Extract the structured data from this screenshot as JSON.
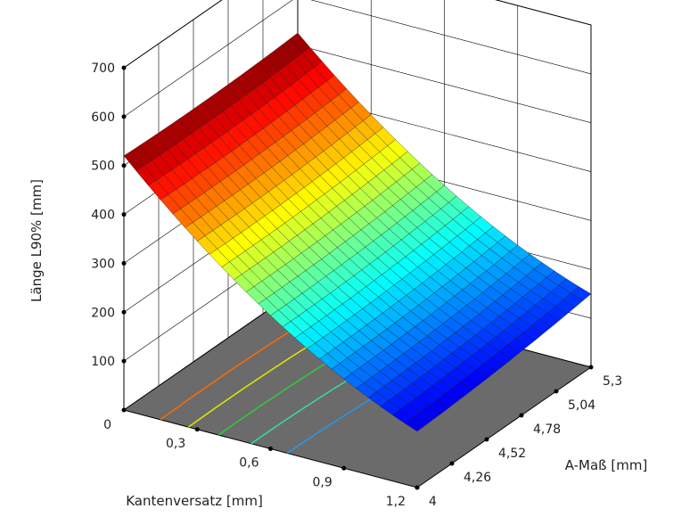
{
  "chart_data": {
    "type": "surface",
    "title": "",
    "zlabel": "Länge L90% [mm]",
    "xlabel": "Kantenversatz [mm]",
    "ylabel": "A-Maß [mm]",
    "x_ticks": [
      "0",
      "0,3",
      "0,6",
      "0,9",
      "1,2"
    ],
    "x_tick_values": [
      0,
      0.3,
      0.6,
      0.9,
      1.2
    ],
    "y_ticks": [
      "4",
      "4,26",
      "4,52",
      "4,78",
      "5,04",
      "5,3"
    ],
    "y_tick_values": [
      4,
      4.26,
      4.52,
      4.78,
      5.04,
      5.3
    ],
    "z_ticks": [
      "100",
      "200",
      "300",
      "400",
      "500",
      "600",
      "700"
    ],
    "z_tick_values": [
      100,
      200,
      300,
      400,
      500,
      600,
      700
    ],
    "xlim": [
      0,
      1.2
    ],
    "ylim": [
      4,
      5.3
    ],
    "zlim": [
      0,
      700
    ],
    "surface_corners": [
      {
        "x": 0,
        "y": 4,
        "z": 520
      },
      {
        "x": 0,
        "y": 5.3,
        "z": 525
      },
      {
        "x": 1.2,
        "y": 4,
        "z": 115
      },
      {
        "x": 1.2,
        "y": 5.3,
        "z": 150
      }
    ],
    "surface_curvature": 90,
    "contour_levels": [
      450,
      400,
      350,
      300,
      250
    ],
    "contour_colors": [
      "#ff6a00",
      "#e6e600",
      "#33cc33",
      "#33ddaa",
      "#2299ee"
    ],
    "floor_color": "#6b6b6b",
    "grid": true,
    "colormap": "jet"
  }
}
